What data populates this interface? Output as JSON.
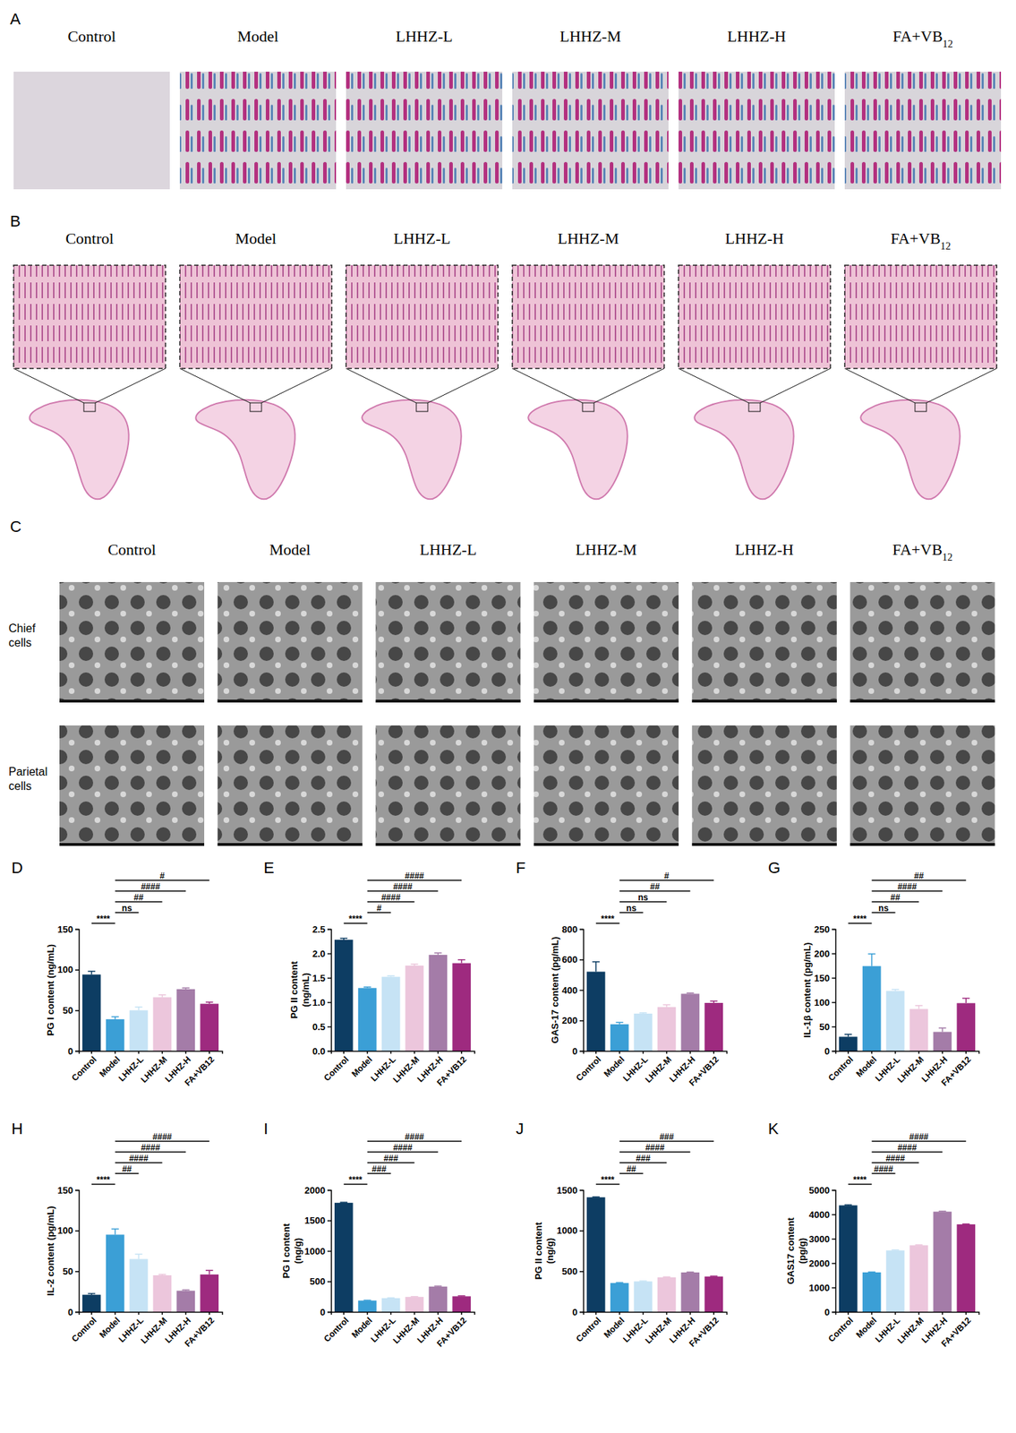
{
  "figure_panels": [
    {
      "label": "A",
      "columns": [
        "Control",
        "Model",
        "LHHZ-L",
        "LHHZ-M",
        "LHHZ-H",
        "FA+VB12"
      ]
    },
    {
      "label": "B",
      "columns": [
        "Control",
        "Model",
        "LHHZ-L",
        "LHHZ-M",
        "LHHZ-H",
        "FA+VB12"
      ]
    },
    {
      "label": "C",
      "columns": [
        "Control",
        "Model",
        "LHHZ-L",
        "LHHZ-M",
        "LHHZ-H",
        "FA+VB12"
      ],
      "rows": [
        "Chief cells",
        "Parietal cells"
      ]
    }
  ],
  "chart_data": [
    {
      "type": "bar",
      "label": "D",
      "y_label": [
        "PG I content (ng/mL)"
      ],
      "categories": [
        "Control",
        "Model",
        "LHHZ-L",
        "LHHZ-M",
        "LHHZ-H",
        "FA+VB12"
      ],
      "values": [
        94,
        39,
        50,
        66,
        76,
        58
      ],
      "errors": [
        4,
        3,
        4,
        3,
        1.5,
        2
      ],
      "colors": [
        "#0d3d63",
        "#3b9fd6",
        "#c6e3f5",
        "#ecc6dc",
        "#a47ca8",
        "#9e2a7f"
      ],
      "ylim": [
        0,
        150
      ],
      "yticks": [
        0,
        50,
        100,
        150
      ],
      "annotations": [
        {
          "text": "****",
          "from": "Control",
          "to": "Model"
        },
        {
          "text": "ns",
          "from": "Model",
          "to": "LHHZ-L"
        },
        {
          "text": "##",
          "from": "Model",
          "to": "LHHZ-M"
        },
        {
          "text": "####",
          "from": "Model",
          "to": "LHHZ-H"
        },
        {
          "text": "#",
          "from": "Model",
          "to": "FA+VB12"
        }
      ]
    },
    {
      "type": "bar",
      "label": "E",
      "y_label": [
        "PG II content",
        "(ng/mL)"
      ],
      "categories": [
        "Control",
        "Model",
        "LHHZ-L",
        "LHHZ-M",
        "LHHZ-H",
        "FA+VB12"
      ],
      "values": [
        2.28,
        1.29,
        1.52,
        1.75,
        1.97,
        1.8
      ],
      "errors": [
        0.03,
        0.02,
        0.02,
        0.03,
        0.04,
        0.07
      ],
      "colors": [
        "#0d3d63",
        "#3b9fd6",
        "#c6e3f5",
        "#ecc6dc",
        "#a47ca8",
        "#9e2a7f"
      ],
      "ylim": [
        0,
        2.5
      ],
      "yticks": [
        {
          "value": 0,
          "label": "0.0"
        },
        0.5,
        {
          "value": 1,
          "label": "1.0"
        },
        1.5,
        {
          "value": 2,
          "label": "2.0"
        },
        2.5
      ],
      "annotations": [
        {
          "text": "****",
          "from": "Control",
          "to": "Model"
        },
        {
          "text": "#",
          "from": "Model",
          "to": "LHHZ-L"
        },
        {
          "text": "####",
          "from": "Model",
          "to": "LHHZ-M"
        },
        {
          "text": "####",
          "from": "Model",
          "to": "LHHZ-H"
        },
        {
          "text": "####",
          "from": "Model",
          "to": "FA+VB12"
        }
      ]
    },
    {
      "type": "bar",
      "label": "F",
      "y_label": [
        "GAS-17 content (pg/mL)"
      ],
      "categories": [
        "Control",
        "Model",
        "LHHZ-L",
        "LHHZ-M",
        "LHHZ-H",
        "FA+VB12"
      ],
      "values": [
        520,
        175,
        245,
        288,
        375,
        315
      ],
      "errors": [
        65,
        12,
        5,
        15,
        5,
        12
      ],
      "colors": [
        "#0d3d63",
        "#3b9fd6",
        "#c6e3f5",
        "#ecc6dc",
        "#a47ca8",
        "#9e2a7f"
      ],
      "ylim": [
        0,
        800
      ],
      "yticks": [
        0,
        200,
        400,
        600,
        800
      ],
      "annotations": [
        {
          "text": "****",
          "from": "Control",
          "to": "Model"
        },
        {
          "text": "ns",
          "from": "Model",
          "to": "LHHZ-L"
        },
        {
          "text": "ns",
          "from": "Model",
          "to": "LHHZ-M"
        },
        {
          "text": "##",
          "from": "Model",
          "to": "LHHZ-H"
        },
        {
          "text": "#",
          "from": "Model",
          "to": "FA+VB12"
        }
      ]
    },
    {
      "type": "bar",
      "label": "G",
      "y_label": [
        "IL-1β content (pg/mL)"
      ],
      "categories": [
        "Control",
        "Model",
        "LHHZ-L",
        "LHHZ-M",
        "LHHZ-H",
        "FA+VB12"
      ],
      "values": [
        29,
        174,
        123,
        86,
        39,
        98
      ],
      "errors": [
        5,
        25,
        3,
        7,
        8,
        10
      ],
      "colors": [
        "#0d3d63",
        "#3b9fd6",
        "#c6e3f5",
        "#ecc6dc",
        "#a47ca8",
        "#9e2a7f"
      ],
      "ylim": [
        0,
        250
      ],
      "yticks": [
        0,
        50,
        100,
        150,
        200,
        250
      ],
      "annotations": [
        {
          "text": "****",
          "from": "Control",
          "to": "Model"
        },
        {
          "text": "ns",
          "from": "Model",
          "to": "LHHZ-L"
        },
        {
          "text": "##",
          "from": "Model",
          "to": "LHHZ-M"
        },
        {
          "text": "####",
          "from": "Model",
          "to": "LHHZ-H"
        },
        {
          "text": "##",
          "from": "Model",
          "to": "FA+VB12"
        }
      ]
    },
    {
      "type": "bar",
      "label": "H",
      "y_label": [
        "IL-2 content (pg/mL)"
      ],
      "categories": [
        "Control",
        "Model",
        "LHHZ-L",
        "LHHZ-M",
        "LHHZ-H",
        "FA+VB12"
      ],
      "values": [
        21,
        95,
        65,
        45,
        26,
        46
      ],
      "errors": [
        1.5,
        7,
        6,
        1,
        1,
        5
      ],
      "colors": [
        "#0d3d63",
        "#3b9fd6",
        "#c6e3f5",
        "#ecc6dc",
        "#a47ca8",
        "#9e2a7f"
      ],
      "ylim": [
        0,
        150
      ],
      "yticks": [
        0,
        50,
        100,
        150
      ],
      "annotations": [
        {
          "text": "****",
          "from": "Control",
          "to": "Model"
        },
        {
          "text": "##",
          "from": "Model",
          "to": "LHHZ-L"
        },
        {
          "text": "####",
          "from": "Model",
          "to": "LHHZ-M"
        },
        {
          "text": "####",
          "from": "Model",
          "to": "LHHZ-H"
        },
        {
          "text": "####",
          "from": "Model",
          "to": "FA+VB12"
        }
      ]
    },
    {
      "type": "bar",
      "label": "I",
      "y_label": [
        "PG I content",
        "(ng/g)"
      ],
      "categories": [
        "Control",
        "Model",
        "LHHZ-L",
        "LHHZ-M",
        "LHHZ-H",
        "FA+VB12"
      ],
      "values": [
        1790,
        185,
        225,
        245,
        415,
        255
      ],
      "errors": [
        8,
        5,
        5,
        5,
        8,
        8
      ],
      "colors": [
        "#0d3d63",
        "#3b9fd6",
        "#c6e3f5",
        "#ecc6dc",
        "#a47ca8",
        "#9e2a7f"
      ],
      "ylim": [
        0,
        2000
      ],
      "yticks": [
        0,
        500,
        1000,
        1500,
        2000
      ],
      "annotations": [
        {
          "text": "****",
          "from": "Control",
          "to": "Model"
        },
        {
          "text": "###",
          "from": "Model",
          "to": "LHHZ-L"
        },
        {
          "text": "###",
          "from": "Model",
          "to": "LHHZ-M"
        },
        {
          "text": "####",
          "from": "Model",
          "to": "LHHZ-H"
        },
        {
          "text": "####",
          "from": "Model",
          "to": "FA+VB12"
        }
      ]
    },
    {
      "type": "bar",
      "label": "J",
      "y_label": [
        "PG II content",
        "(ng/g)"
      ],
      "categories": [
        "Control",
        "Model",
        "LHHZ-L",
        "LHHZ-M",
        "LHHZ-H",
        "FA+VB12"
      ],
      "values": [
        1410,
        355,
        375,
        425,
        485,
        435
      ],
      "errors": [
        5,
        5,
        5,
        5,
        5,
        5
      ],
      "colors": [
        "#0d3d63",
        "#3b9fd6",
        "#c6e3f5",
        "#ecc6dc",
        "#a47ca8",
        "#9e2a7f"
      ],
      "ylim": [
        0,
        1500
      ],
      "yticks": [
        0,
        500,
        1000,
        1500
      ],
      "annotations": [
        {
          "text": "****",
          "from": "Control",
          "to": "Model"
        },
        {
          "text": "##",
          "from": "Model",
          "to": "LHHZ-L"
        },
        {
          "text": "###",
          "from": "Model",
          "to": "LHHZ-M"
        },
        {
          "text": "####",
          "from": "Model",
          "to": "LHHZ-H"
        },
        {
          "text": "###",
          "from": "Model",
          "to": "FA+VB12"
        }
      ]
    },
    {
      "type": "bar",
      "label": "K",
      "y_label": [
        "GAS17 content",
        "(pg/g)"
      ],
      "categories": [
        "Control",
        "Model",
        "LHHZ-L",
        "LHHZ-M",
        "LHHZ-H",
        "FA+VB12"
      ],
      "values": [
        4370,
        1620,
        2520,
        2730,
        4110,
        3590
      ],
      "errors": [
        20,
        15,
        20,
        20,
        20,
        15
      ],
      "colors": [
        "#0d3d63",
        "#3b9fd6",
        "#c6e3f5",
        "#ecc6dc",
        "#a47ca8",
        "#9e2a7f"
      ],
      "ylim": [
        0,
        5000
      ],
      "yticks": [
        0,
        1000,
        2000,
        3000,
        4000,
        5000
      ],
      "annotations": [
        {
          "text": "****",
          "from": "Control",
          "to": "Model"
        },
        {
          "text": "####",
          "from": "Model",
          "to": "LHHZ-L"
        },
        {
          "text": "####",
          "from": "Model",
          "to": "LHHZ-M"
        },
        {
          "text": "####",
          "from": "Model",
          "to": "LHHZ-H"
        },
        {
          "text": "####",
          "from": "Model",
          "to": "FA+VB12"
        }
      ]
    }
  ]
}
